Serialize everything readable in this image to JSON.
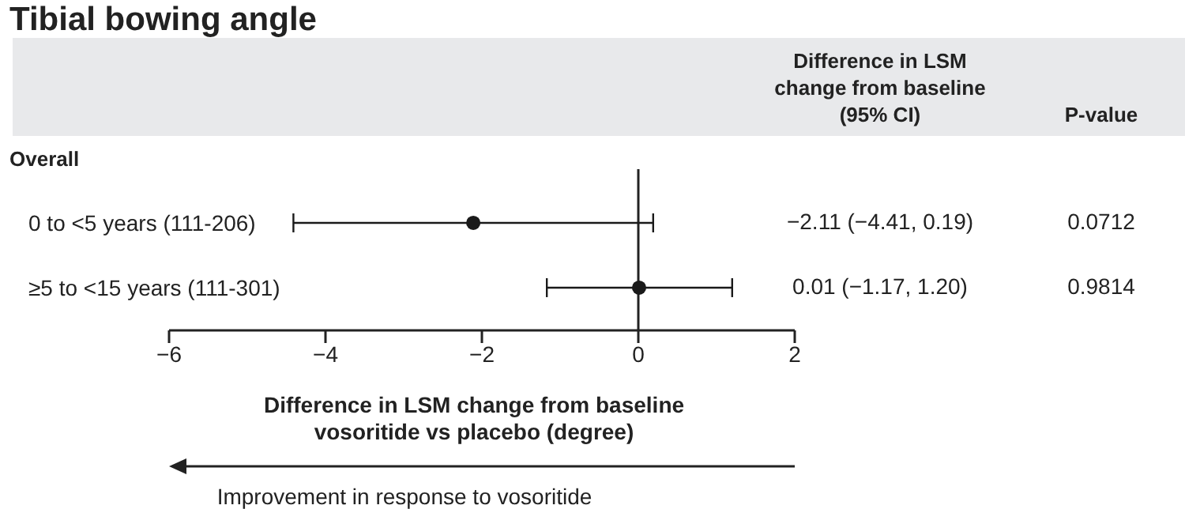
{
  "chart_data": {
    "type": "scatter",
    "orientation": "horizontal",
    "title": "Tibial bowing angle",
    "xlabel": "Difference in LSM change from baseline vosoritide vs placebo (degree)",
    "categories": [
      "0 to <5 years (111-206)",
      "≥5 to <15 years (111-301)"
    ],
    "values": [
      -2.11,
      0.01
    ],
    "errors": [
      [
        -4.41,
        0.19
      ],
      [
        -1.17,
        1.2
      ]
    ],
    "value_labels": [
      "−2.11 (−4.41, 0.19)",
      "0.01 (−1.17, 1.20)"
    ],
    "color": "#1a1a1a",
    "marker": "circle",
    "grid": false,
    "legend": false,
    "xlim": [
      -6,
      2
    ],
    "xticks": [
      {
        "value": -6,
        "label": "−6"
      },
      {
        "value": -4,
        "label": "−4"
      },
      {
        "value": -2,
        "label": "−2"
      },
      0,
      2
    ],
    "ref_lines": [
      {
        "axis": "x",
        "value": 0
      }
    ],
    "annotations": [
      "Difference in LSM change from baseline (95% CI)",
      "P-value",
      "Overall",
      "0.0712",
      "0.9814",
      "Improvement in response to vosoritide"
    ]
  }
}
